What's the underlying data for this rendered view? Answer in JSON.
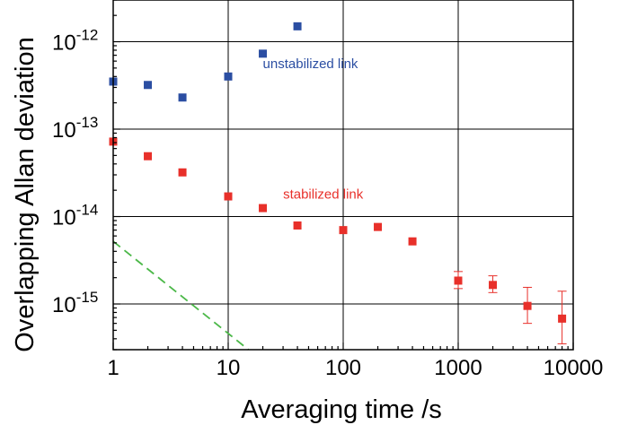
{
  "chart_data": {
    "type": "scatter",
    "xlabel": "Averaging time /s",
    "ylabel": "Overlapping Allan deviation",
    "xscale": "log",
    "yscale": "log",
    "xlim": [
      1,
      10000
    ],
    "ylim": [
      3e-16,
      3e-12
    ],
    "grid": true,
    "x_tick_values": [
      1,
      10,
      100,
      1000,
      10000
    ],
    "x_tick_labels": [
      "1",
      "10",
      "100",
      "1000",
      "10000"
    ],
    "y_tick_values": [
      1e-15,
      1e-14,
      1e-13,
      1e-12
    ],
    "y_tick_labels": [
      {
        "base": "10",
        "exp": "-15"
      },
      {
        "base": "10",
        "exp": "-14"
      },
      {
        "base": "10",
        "exp": "-13"
      },
      {
        "base": "10",
        "exp": "-12"
      }
    ],
    "series": [
      {
        "name": "unstabilized link",
        "color": "#2b4ea2",
        "marker": "square",
        "x": [
          1,
          2,
          4,
          10,
          20,
          40
        ],
        "y": [
          3.5e-13,
          3.2e-13,
          2.3e-13,
          4e-13,
          7.3e-13,
          1.5e-12
        ]
      },
      {
        "name": "stabilized link",
        "color": "#e8302a",
        "marker": "square",
        "x": [
          1,
          2,
          4,
          10,
          20,
          40,
          100,
          200,
          400,
          1000,
          2000,
          4000,
          8000
        ],
        "y": [
          7.2e-14,
          4.9e-14,
          3.2e-14,
          1.7e-14,
          1.25e-14,
          7.9e-15,
          7e-15,
          7.6e-15,
          5.2e-15,
          1.85e-15,
          1.65e-15,
          9.5e-16,
          6.8e-16
        ],
        "err_low": [
          null,
          null,
          null,
          null,
          null,
          null,
          null,
          null,
          null,
          1.5e-15,
          1.35e-15,
          6e-16,
          3.5e-16
        ],
        "err_high": [
          null,
          null,
          null,
          null,
          null,
          null,
          null,
          null,
          null,
          2.35e-15,
          2.1e-15,
          1.55e-15,
          1.4e-15
        ]
      },
      {
        "name": "",
        "color": "#4bb848",
        "line_style": "dashed",
        "x": [
          1,
          15
        ],
        "y": [
          5.2e-15,
          3e-16
        ]
      }
    ],
    "annotations": [
      {
        "text": "unstabilized link",
        "color": "#2b4ea2",
        "x": 20,
        "y": 5e-13
      },
      {
        "text": "stabilized link",
        "color": "#e8302a",
        "x": 30,
        "y": 1.6e-14
      }
    ]
  }
}
